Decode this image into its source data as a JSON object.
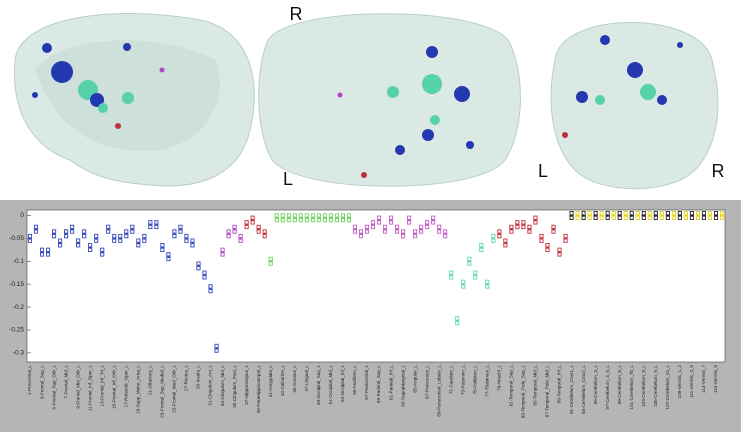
{
  "axial_view": {
    "top": "R",
    "bottom": "L"
  },
  "coronal_view": {
    "left": "L",
    "right": "R"
  },
  "chart_data": {
    "type": "box",
    "categories": [
      "1-Precentral_L",
      null,
      "3-Frontal_Sup_L",
      null,
      "5-Frontal_Sup_Orb_L",
      null,
      "7-Frontal_Mid_L",
      null,
      "9-Frontal_Mid_Orb_L",
      null,
      "11-Frontal_Inf_Oper_L",
      null,
      "13-Frontal_Inf_Tri_L",
      null,
      "15-Frontal_Inf_Orb_L",
      null,
      "17-Rolandic_Oper_L",
      null,
      "19-Supp_Motor_Area_L",
      null,
      "21-Olfactory_L",
      null,
      "23-Frontal_Sup_Medial_L",
      null,
      "25-Frontal_Med_Orb_L",
      null,
      "27-Rectus_L",
      null,
      "29-Insula_L",
      null,
      "31-Cingulum_Ant_L",
      null,
      "33-Cingulum_Mid_L",
      null,
      "35-Cingulum_Post_L",
      null,
      "37-Hippocampus_L",
      null,
      "39-ParaHippocampal_L",
      null,
      "41-Amygdala_L",
      null,
      "43-Calcarine_L",
      null,
      "45-Cuneus_L",
      null,
      "47-Lingual_L",
      null,
      "49-Occipital_Sup_L",
      null,
      "51-Occipital_Mid_L",
      null,
      "53-Occipital_Inf_L",
      null,
      "55-Fusiform_L",
      null,
      "57-Postcentral_L",
      null,
      "59-Parietal_Sup_L",
      null,
      "61-Parietal_Inf_L",
      null,
      "63-SupraMarginal_L",
      null,
      "65-Angular_L",
      null,
      "67-Precuneus_L",
      null,
      "69-Paracentral_Lobule_L",
      null,
      "71-Caudate_L",
      null,
      "73-Putamen_L",
      null,
      "75-Pallidum_L",
      null,
      "77-Thalamus_L",
      null,
      "79-Heschl_L",
      null,
      "81-Temporal_Sup_L",
      null,
      "83-Temporal_Pole_Sup_L",
      null,
      "85-Temporal_Mid_L",
      null,
      "87-Temporal_Pole_Mid_L",
      null,
      "89-Temporal_Inf_L",
      null,
      "91-Cerebelum_Crus1_L",
      null,
      "93-Cerebelum_Crus2_L",
      null,
      "95-Cerebelum_3_L",
      null,
      "97-Cerebelum_4_5_L",
      null,
      "99-Cerebelum_6_L",
      null,
      "101-Cerebelum_7b_L",
      null,
      "103-Cerebelum_8_L",
      null,
      "105-Cerebelum_9_L",
      null,
      "107-Cerebelum_10_L",
      null,
      "109-Vermis_1_2",
      null,
      "111-Vermis_4_5",
      null,
      "113-Vermis_7",
      null,
      "115-Vermis_9",
      null
    ],
    "values": [
      -0.05,
      -0.03,
      -0.08,
      -0.08,
      -0.04,
      -0.06,
      -0.04,
      -0.03,
      -0.06,
      -0.04,
      -0.07,
      -0.05,
      -0.08,
      -0.03,
      -0.05,
      -0.05,
      -0.04,
      -0.03,
      -0.06,
      -0.05,
      -0.02,
      -0.02,
      -0.07,
      -0.09,
      -0.04,
      -0.03,
      -0.05,
      -0.06,
      -0.11,
      -0.13,
      -0.16,
      -0.29,
      -0.08,
      -0.04,
      -0.03,
      -0.05,
      -0.02,
      -0.01,
      -0.03,
      -0.04,
      -0.1,
      -0.005,
      -0.005,
      -0.005,
      -0.005,
      -0.005,
      -0.005,
      -0.005,
      -0.005,
      -0.005,
      -0.005,
      -0.005,
      -0.005,
      -0.005,
      -0.03,
      -0.04,
      -0.03,
      -0.02,
      -0.01,
      -0.03,
      -0.01,
      -0.03,
      -0.04,
      -0.01,
      -0.04,
      -0.03,
      -0.02,
      -0.01,
      -0.03,
      -0.04,
      -0.13,
      -0.23,
      -0.15,
      -0.1,
      -0.13,
      -0.07,
      -0.15,
      -0.05,
      -0.04,
      -0.06,
      -0.03,
      -0.02,
      -0.02,
      -0.03,
      -0.01,
      -0.05,
      -0.07,
      -0.03,
      -0.08,
      -0.05,
      0,
      0,
      0,
      0,
      0,
      0,
      0,
      0,
      0,
      0,
      0,
      0,
      0,
      0,
      0,
      0,
      0,
      0,
      0,
      0,
      0,
      0,
      0,
      0,
      0,
      0
    ],
    "colors": [
      "#3347b8",
      "#3347b8",
      "#3347b8",
      "#3347b8",
      "#3347b8",
      "#3347b8",
      "#3347b8",
      "#3347b8",
      "#3347b8",
      "#3347b8",
      "#3347b8",
      "#3347b8",
      "#3347b8",
      "#3347b8",
      "#3347b8",
      "#3347b8",
      "#3347b8",
      "#3347b8",
      "#3347b8",
      "#3347b8",
      "#3347b8",
      "#3347b8",
      "#3347b8",
      "#3347b8",
      "#3347b8",
      "#3347b8",
      "#3347b8",
      "#3347b8",
      "#3347b8",
      "#3347b8",
      "#3347b8",
      "#3347b8",
      "#b146c2",
      "#b146c2",
      "#b146c2",
      "#b146c2",
      "#c0303a",
      "#c0303a",
      "#c0303a",
      "#c0303a",
      "#6fd15a",
      "#6fd15a",
      "#6fd15a",
      "#6fd15a",
      "#6fd15a",
      "#6fd15a",
      "#6fd15a",
      "#6fd15a",
      "#6fd15a",
      "#6fd15a",
      "#6fd15a",
      "#6fd15a",
      "#6fd15a",
      "#6fd15a",
      "#c25cc9",
      "#c25cc9",
      "#c25cc9",
      "#c25cc9",
      "#c25cc9",
      "#c25cc9",
      "#c25cc9",
      "#c25cc9",
      "#c25cc9",
      "#c25cc9",
      "#c25cc9",
      "#c25cc9",
      "#c25cc9",
      "#c25cc9",
      "#c25cc9",
      "#c25cc9",
      "#5fd6b8",
      "#5fd6b8",
      "#5fd6b8",
      "#5fd6b8",
      "#5fd6b8",
      "#5fd6b8",
      "#5fd6b8",
      "#5fd6b8",
      "#c0303a",
      "#c0303a",
      "#c0303a",
      "#c0303a",
      "#c0303a",
      "#c0303a",
      "#c0303a",
      "#c0303a",
      "#c0303a",
      "#c0303a",
      "#c0303a",
      "#c0303a",
      "#222222",
      "#e6d21a",
      "#222222",
      "#e6d21a",
      "#222222",
      "#e6d21a",
      "#222222",
      "#e6d21a",
      "#222222",
      "#e6d21a",
      "#222222",
      "#e6d21a",
      "#222222",
      "#e6d21a",
      "#222222",
      "#e6d21a",
      "#222222",
      "#e6d21a",
      "#222222",
      "#e6d21a",
      "#222222",
      "#e6d21a",
      "#222222",
      "#e6d21a",
      "#222222",
      "#e6d21a"
    ],
    "ylim": [
      -0.32,
      0.012
    ],
    "yticks": [
      0,
      -0.05,
      -0.1,
      -0.15,
      -0.2,
      -0.25,
      -0.3
    ]
  }
}
